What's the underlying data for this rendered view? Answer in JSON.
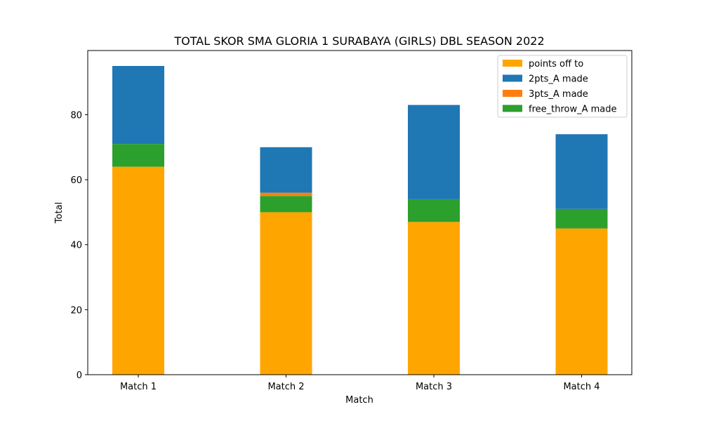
{
  "chart_data": {
    "type": "bar",
    "stacked": true,
    "title": "TOTAL SKOR SMA GLORIA 1 SURABAYA (GIRLS) DBL SEASON 2022",
    "xlabel": "Match",
    "ylabel": "Total",
    "categories": [
      "Match 1",
      "Match 2",
      "Match 3",
      "Match 4"
    ],
    "ylim": [
      0,
      99.75
    ],
    "yticks": [
      0,
      20,
      40,
      60,
      80
    ],
    "grid": false,
    "legend_position": "top-right",
    "series": [
      {
        "name": "points off to",
        "color": "#ffa500",
        "values": [
          64,
          50,
          47,
          45
        ]
      },
      {
        "name": "free_throw_A made",
        "color": "#2ca02c",
        "values": [
          7,
          5,
          7,
          6
        ]
      },
      {
        "name": "3pts_A made",
        "color": "#ff7f0e",
        "values": [
          0,
          1,
          0,
          0
        ]
      },
      {
        "name": "2pts_A made",
        "color": "#1f77b4",
        "values": [
          24,
          14,
          29,
          23
        ]
      }
    ],
    "legend_order": [
      "points off to",
      "2pts_A made",
      "3pts_A made",
      "free_throw_A made"
    ]
  }
}
